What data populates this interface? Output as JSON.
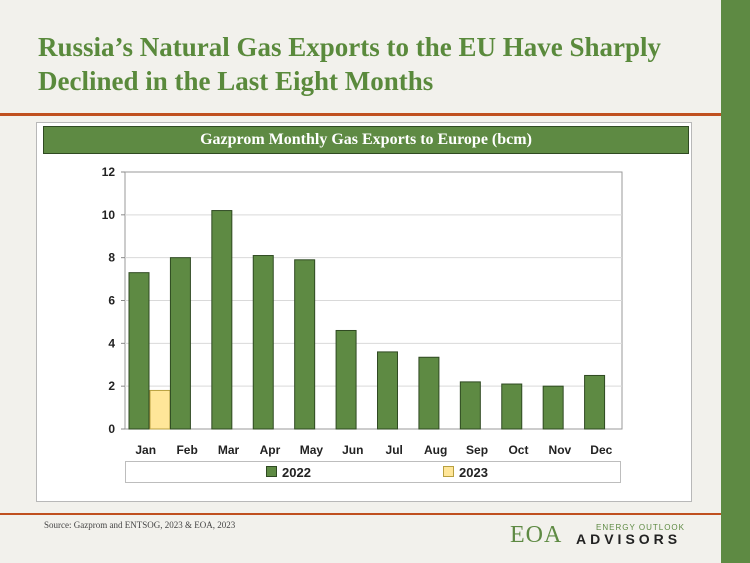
{
  "headline": "Russia’s Natural Gas Exports to the EU Have Sharply Declined in the Last Eight Months",
  "source": "Source:  Gazprom and ENTSOG, 2023 & EOA, 2023",
  "logo": {
    "main": "EOA",
    "top": "ENERGY OUTLOOK",
    "bottom": "ADVISORS"
  },
  "colors": {
    "accent_green": "#5e8a43",
    "rule_orange": "#c0501f",
    "series_2022": "#5e8a43",
    "series_2023": "#ffe699"
  },
  "chart_data": {
    "type": "bar",
    "title": "Gazprom Monthly  Gas Exports to Europe (bcm)",
    "categories": [
      "Jan",
      "Feb",
      "Mar",
      "Apr",
      "May",
      "Jun",
      "Jul",
      "Aug",
      "Sep",
      "Oct",
      "Nov",
      "Dec"
    ],
    "series": [
      {
        "name": "2022",
        "values": [
          7.3,
          8.0,
          10.2,
          8.1,
          7.9,
          4.6,
          3.6,
          3.35,
          2.2,
          2.1,
          2.0,
          2.5
        ]
      },
      {
        "name": "2023",
        "values": [
          1.8,
          null,
          null,
          null,
          null,
          null,
          null,
          null,
          null,
          null,
          null,
          null
        ]
      }
    ],
    "ylim": [
      0,
      12
    ],
    "yticks": [
      "0",
      "2",
      "4",
      "6",
      "8",
      "10",
      "12"
    ],
    "grid": true,
    "legend_position": "bottom"
  }
}
